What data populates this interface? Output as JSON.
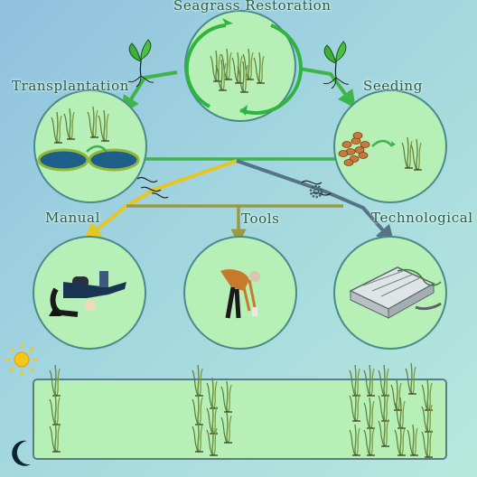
{
  "title": "Seagrass Restoration",
  "branches": {
    "left": "Transplantation",
    "right": "Seeding"
  },
  "methods": [
    {
      "id": "manual",
      "label": "Manual"
    },
    {
      "id": "tools",
      "label": "Tools"
    },
    {
      "id": "technological",
      "label": "Technological"
    }
  ],
  "icons": {
    "sun": "sun-icon",
    "moon": "moon-icon",
    "gear": "gear-icon"
  },
  "colors": {
    "circle_fill": "#b6f0b6",
    "circle_stroke": "#4a8a8a",
    "arrow_green": "#3db54a",
    "arrow_yellow": "#e6c620",
    "arrow_olive": "#9a9a45",
    "arrow_slate": "#567486"
  }
}
